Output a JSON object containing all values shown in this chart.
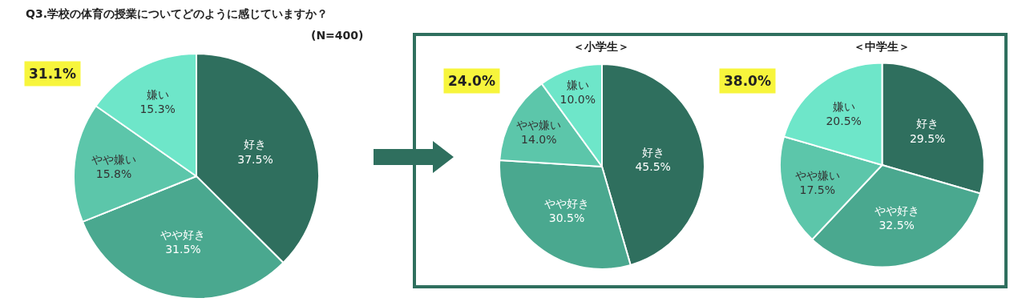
{
  "chart_data": [
    {
      "type": "pie",
      "title": "Q3.学校の体育の授業についてどのように感じていますか？",
      "categories": [
        "好き",
        "やや好き",
        "やや嫌い",
        "嫌い"
      ],
      "values": [
        37.5,
        31.5,
        15.8,
        15.3
      ],
      "value_labels": [
        "37.5%",
        "31.5%",
        "15.8%",
        "15.3%"
      ],
      "colors": [
        "#2f6f5e",
        "#4aa88f",
        "#5cc6aa",
        "#6ee6c9"
      ],
      "annotations": [
        "(N=400)",
        "31.1%"
      ]
    },
    {
      "type": "pie",
      "title": "＜小学生＞",
      "categories": [
        "好き",
        "やや好き",
        "やや嫌い",
        "嫌い"
      ],
      "values": [
        45.5,
        30.5,
        14.0,
        10.0
      ],
      "value_labels": [
        "45.5%",
        "30.5%",
        "14.0%",
        "10.0%"
      ],
      "colors": [
        "#2f6f5e",
        "#4aa88f",
        "#5cc6aa",
        "#6ee6c9"
      ],
      "annotations": [
        "24.0%"
      ]
    },
    {
      "type": "pie",
      "title": "＜中学生＞",
      "categories": [
        "好き",
        "やや好き",
        "やや嫌い",
        "嫌い"
      ],
      "values": [
        29.5,
        32.5,
        17.5,
        20.5
      ],
      "value_labels": [
        "29.5%",
        "32.5%",
        "17.5%",
        "20.5%"
      ],
      "colors": [
        "#2f6f5e",
        "#4aa88f",
        "#5cc6aa",
        "#6ee6c9"
      ],
      "annotations": [
        "38.0%"
      ]
    }
  ]
}
